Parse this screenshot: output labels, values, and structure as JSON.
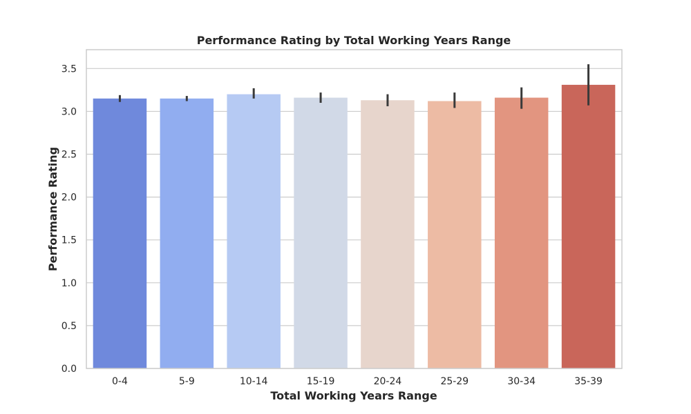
{
  "chart_data": {
    "type": "bar",
    "title": "Performance Rating by Total Working Years Range",
    "xlabel": "Total Working Years Range",
    "ylabel": "Performance Rating",
    "categories": [
      "0-4",
      "5-9",
      "10-14",
      "15-19",
      "20-24",
      "25-29",
      "30-34",
      "35-39"
    ],
    "values": [
      3.15,
      3.15,
      3.2,
      3.16,
      3.13,
      3.12,
      3.16,
      3.31
    ],
    "error_low": [
      3.11,
      3.12,
      3.15,
      3.1,
      3.06,
      3.04,
      3.03,
      3.07
    ],
    "error_high": [
      3.19,
      3.18,
      3.27,
      3.22,
      3.2,
      3.22,
      3.28,
      3.55
    ],
    "colors": [
      "#6f89dc",
      "#91adf0",
      "#b6caf3",
      "#d1d9e7",
      "#e7d5cc",
      "#edbba4",
      "#e29580",
      "#c9665a"
    ],
    "error_color": "#3a3a3a",
    "ylim": [
      0,
      3.72
    ],
    "yticks": [
      "0.0",
      "0.5",
      "1.0",
      "1.5",
      "2.0",
      "2.5",
      "3.0",
      "3.5"
    ],
    "grid": true
  }
}
